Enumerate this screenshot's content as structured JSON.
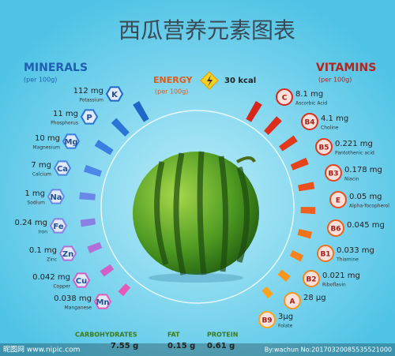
{
  "title": "西瓜营养元素图表",
  "minerals": {
    "heading": "MINERALS",
    "unit": "(per 100g)",
    "items": [
      {
        "symbol": "K",
        "amount": "112 mg",
        "name": "Potassium"
      },
      {
        "symbol": "P",
        "amount": "11 mg",
        "name": "Phosphorus"
      },
      {
        "symbol": "Mg",
        "amount": "10 mg",
        "name": "Magnesium"
      },
      {
        "symbol": "Ca",
        "amount": "7 mg",
        "name": "Calcium"
      },
      {
        "symbol": "Na",
        "amount": "1 mg",
        "name": "Sodium"
      },
      {
        "symbol": "Fe",
        "amount": "0.24 mg",
        "name": "Iron"
      },
      {
        "symbol": "Zn",
        "amount": "0.1 mg",
        "name": "Zinc"
      },
      {
        "symbol": "Cu",
        "amount": "0.042 mg",
        "name": "Copper"
      },
      {
        "symbol": "Mn",
        "amount": "0.038 mg",
        "name": "Manganese"
      }
    ]
  },
  "energy": {
    "heading": "ENERGY",
    "unit": "(per 100g)",
    "amount": "30 kcal"
  },
  "vitamins": {
    "heading": "VITAMINS",
    "unit": "(per 100g)",
    "items": [
      {
        "symbol": "C",
        "amount": "8.1 mg",
        "name": "Ascorbic Acid"
      },
      {
        "symbol": "B4",
        "amount": "4.1 mg",
        "name": "Choline"
      },
      {
        "symbol": "B5",
        "amount": "0.221 mg",
        "name": "Pantothenic acid"
      },
      {
        "symbol": "B3",
        "amount": "0.178 mg",
        "name": "Niacin"
      },
      {
        "symbol": "E",
        "amount": "0.05 mg",
        "name": "Alpha-Tocopherol"
      },
      {
        "symbol": "B6",
        "amount": "0.045 mg"
      },
      {
        "symbol": "B1",
        "amount": "0.033 mg",
        "name": "Thiamine"
      },
      {
        "symbol": "B2",
        "amount": "0.021 mg",
        "name": "Riboflavin"
      },
      {
        "symbol": "A",
        "amount": "28 µg"
      },
      {
        "symbol": "B9",
        "amount": "3µg",
        "name": "Folate"
      }
    ]
  },
  "macros": [
    {
      "name": "CARBOHYDRATES",
      "amount": "7.55 g"
    },
    {
      "name": "FAT",
      "amount": "0.15 g"
    },
    {
      "name": "PROTEIN",
      "amount": "0.61 g"
    }
  ],
  "watermark": {
    "left": "昵图网 www.nipic.com",
    "right": "By:wachun No:20170320085535521000"
  }
}
